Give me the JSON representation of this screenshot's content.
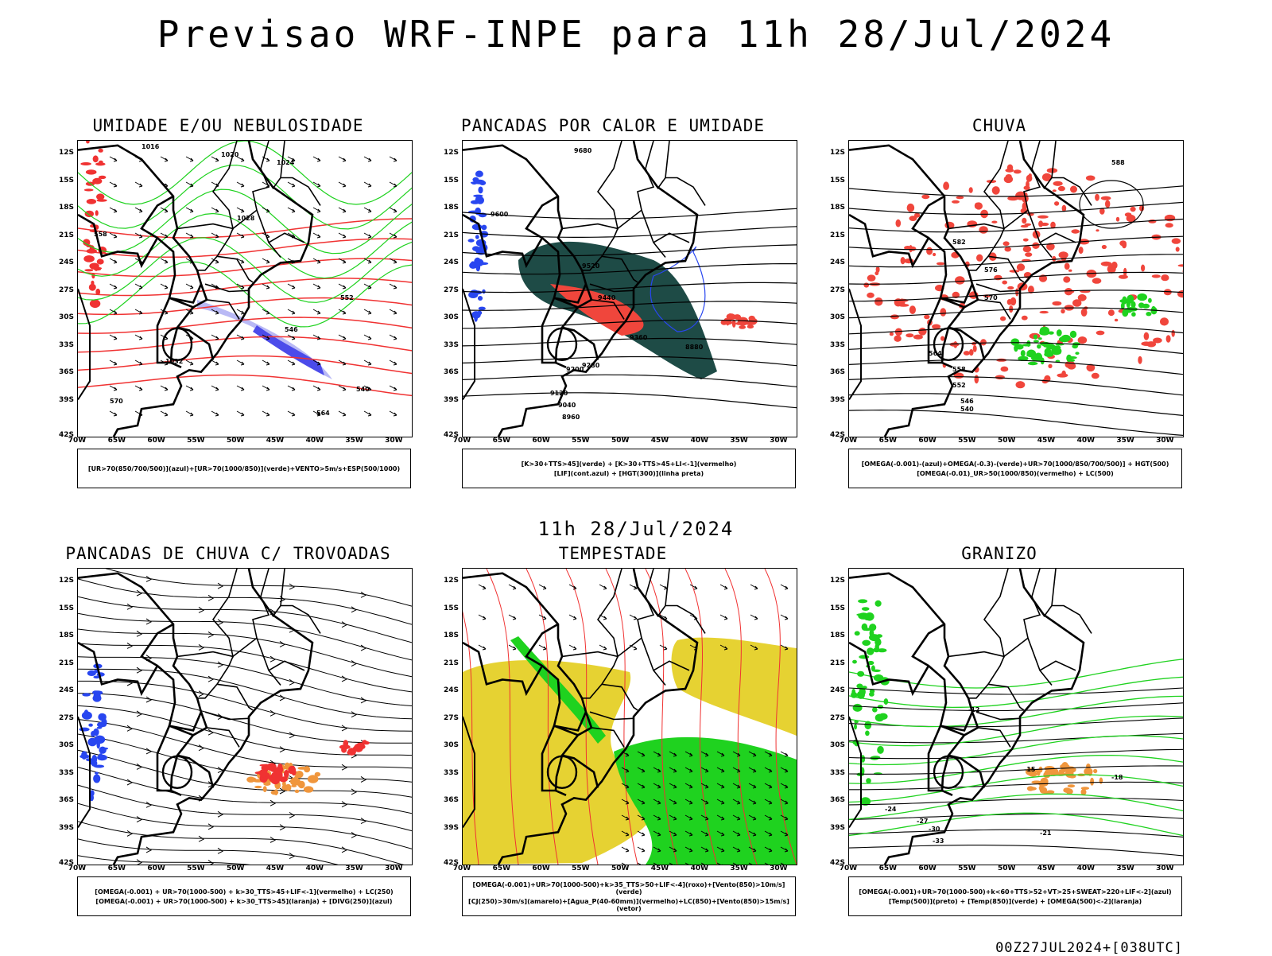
{
  "title": "Previsao WRF-INPE  para 11h 28/Jul/2024",
  "subtitle": "11h 28/Jul/2024",
  "footer": "00Z27JUL2024+[038UTC]",
  "axes": {
    "lat": [
      "12S",
      "15S",
      "18S",
      "21S",
      "24S",
      "27S",
      "30S",
      "33S",
      "36S",
      "39S",
      "42S"
    ],
    "lon": [
      "70W",
      "65W",
      "60W",
      "55W",
      "50W",
      "45W",
      "40W",
      "35W",
      "30W"
    ]
  },
  "panels": [
    {
      "title": "UMIDADE E/OU NEBULOSIDADE",
      "legend": [
        "[UR>70(850/700/500)](azul)+[UR>70(1000/850)](verde)+VENTO>5m/s+ESP(500/1000)"
      ],
      "contour_labels": [
        "1016",
        "1020",
        "1024",
        "1028",
        "1032",
        "570",
        "564",
        "558",
        "552",
        "546",
        "540"
      ]
    },
    {
      "title": "PANCADAS POR CALOR E UMIDADE",
      "legend": [
        "[K>30+TTS>45](verde)  +  [K>30+TTS>45+LI<-1](vermelho)",
        "[LIF](cont.azul)  +  [HGT(300)](linha preta)"
      ],
      "contour_labels": [
        "9680",
        "9600",
        "9520",
        "9440",
        "9360",
        "9280",
        "9200",
        "9120",
        "9040",
        "8960",
        "8880"
      ]
    },
    {
      "title": "CHUVA",
      "legend": [
        "[OMEGA(-0.001)-(azul)+OMEGA(-0.3)-(verde)+UR>70(1000/850/700/500)]  +  HGT(500)",
        "[OMEGA(-0.01)_UR>50(1000/850)(vermelho)  +  LC(500)"
      ],
      "contour_labels": [
        "588",
        "582",
        "576",
        "570",
        "564",
        "558",
        "552",
        "546",
        "540"
      ]
    },
    {
      "title": "PANCADAS DE CHUVA C/ TROVOADAS",
      "legend": [
        "[OMEGA(-0.001)  +  UR>70(1000-500)  +  k>30_TTS>45+LIF<-1](vermelho)  +  LC(250)",
        "[OMEGA(-0.001)  +  UR>70(1000-500)  +  k>30_TTS>45](laranja)  +  [DIVG(250)](azul)"
      ]
    },
    {
      "title": "TEMPESTADE",
      "legend": [
        "[OMEGA(-0.001)+UR>70(1000-500)+k>35_TTS>50+LIF<-4](roxo)+[Vento(850)>10m/s](verde)",
        "[CJ(250)>30m/s](amarelo)+[Agua_P(40-60mm)](vermelho)+LC(850)+[Vento(850)>15m/s](vetor)"
      ]
    },
    {
      "title": "GRANIZO",
      "legend": [
        "[OMEGA(-0.001)+UR>70(1000-500)+k<60+TTS>52+VT>25+SWEAT>220+LIF<-2](azul)",
        "[Temp(500)](preto)  +  [Temp(850)](verde)  +  [OMEGA(500)<-2](laranja)"
      ],
      "contour_labels": [
        "-12",
        "-15",
        "-18",
        "-21",
        "-24",
        "-27",
        "-30",
        "-33"
      ]
    }
  ],
  "colors": {
    "relief_green": "#1fd21f",
    "shade_blue": "#4b4bea",
    "shade_lightblue": "#b9b9f5",
    "shade_red": "#f0463c",
    "shade_darkgreen": "#1e4b46",
    "shade_yellow": "#e6d232",
    "shade_orange": "#f0963c",
    "contour_red": "#f03232",
    "contour_blue": "#2846f0"
  }
}
